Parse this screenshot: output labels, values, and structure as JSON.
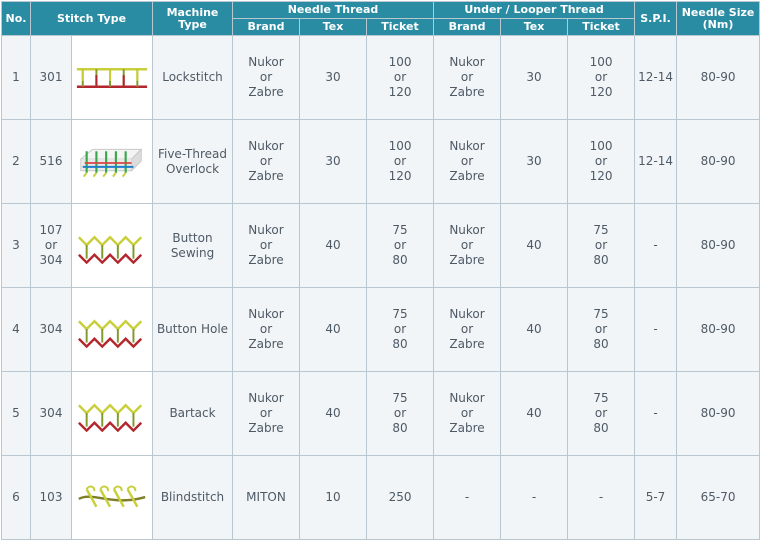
{
  "headers": {
    "no": "No.",
    "stitch_type": "Stitch Type",
    "machine_type": "Machine Type",
    "needle_thread": "Needle Thread",
    "under_looper_thread": "Under / Looper Thread",
    "brand": "Brand",
    "tex": "Tex",
    "ticket": "Ticket",
    "spi": "S.P.I.",
    "needle_size": "Needle Size (Nm)"
  },
  "rows": [
    {
      "no": "1",
      "stitch": [
        "301"
      ],
      "stitch_icon": "lockstitch-diagram-icon",
      "machine": [
        "Lockstitch"
      ],
      "n_brand": [
        "Nukor",
        "or",
        "Zabre"
      ],
      "n_tex": "30",
      "n_ticket": [
        "100",
        "or",
        "120"
      ],
      "u_brand": [
        "Nukor",
        "or",
        "Zabre"
      ],
      "u_tex": "30",
      "u_ticket": [
        "100",
        "or",
        "120"
      ],
      "spi": "12-14",
      "needle": "80-90"
    },
    {
      "no": "2",
      "stitch": [
        "516"
      ],
      "stitch_icon": "overlock-diagram-icon",
      "machine": [
        "Five-Thread",
        "Overlock"
      ],
      "n_brand": [
        "Nukor",
        "or",
        "Zabre"
      ],
      "n_tex": "30",
      "n_ticket": [
        "100",
        "or",
        "120"
      ],
      "u_brand": [
        "Nukor",
        "or",
        "Zabre"
      ],
      "u_tex": "30",
      "u_ticket": [
        "100",
        "or",
        "120"
      ],
      "spi": "12-14",
      "needle": "80-90"
    },
    {
      "no": "3",
      "stitch": [
        "107",
        "or",
        "304"
      ],
      "stitch_icon": "zigzag-diagram-icon",
      "machine": [
        "Button",
        "Sewing"
      ],
      "n_brand": [
        "Nukor",
        "or",
        "Zabre"
      ],
      "n_tex": "40",
      "n_ticket": [
        "75",
        "or",
        "80"
      ],
      "u_brand": [
        "Nukor",
        "or",
        "Zabre"
      ],
      "u_tex": "40",
      "u_ticket": [
        "75",
        "or",
        "80"
      ],
      "spi": "-",
      "needle": "80-90"
    },
    {
      "no": "4",
      "stitch": [
        "304"
      ],
      "stitch_icon": "zigzag-diagram-icon",
      "machine": [
        "Button Hole"
      ],
      "n_brand": [
        "Nukor",
        "or",
        "Zabre"
      ],
      "n_tex": "40",
      "n_ticket": [
        "75",
        "or",
        "80"
      ],
      "u_brand": [
        "Nukor",
        "or",
        "Zabre"
      ],
      "u_tex": "40",
      "u_ticket": [
        "75",
        "or",
        "80"
      ],
      "spi": "-",
      "needle": "80-90"
    },
    {
      "no": "5",
      "stitch": [
        "304"
      ],
      "stitch_icon": "zigzag-diagram-icon",
      "machine": [
        "Bartack"
      ],
      "n_brand": [
        "Nukor",
        "or",
        "Zabre"
      ],
      "n_tex": "40",
      "n_ticket": [
        "75",
        "or",
        "80"
      ],
      "u_brand": [
        "Nukor",
        "or",
        "Zabre"
      ],
      "u_tex": "40",
      "u_ticket": [
        "75",
        "or",
        "80"
      ],
      "spi": "-",
      "needle": "80-90"
    },
    {
      "no": "6",
      "stitch": [
        "103"
      ],
      "stitch_icon": "blindstitch-diagram-icon",
      "machine": [
        "Blindstitch"
      ],
      "n_brand": [
        "MITON"
      ],
      "n_tex": "10",
      "n_ticket": [
        "250"
      ],
      "u_brand": [
        "-"
      ],
      "u_tex": "-",
      "u_ticket": [
        "-"
      ],
      "spi": "5-7",
      "needle": "65-70"
    }
  ]
}
